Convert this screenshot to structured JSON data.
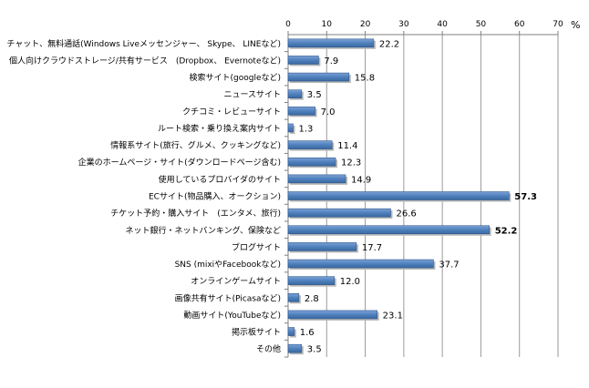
{
  "chart_data": {
    "type": "bar",
    "orientation": "horizontal",
    "unit": "%",
    "x_ticks": [
      "0",
      "10",
      "20",
      "30",
      "40",
      "50",
      "60",
      "70"
    ],
    "xlim": [
      0,
      70
    ],
    "grid": true,
    "bar_color": "#4f81bd",
    "categories": [
      "チャット、無料通話(Windows Liveメッセンジャー、 Skype、 LINEなど)",
      "個人向けクラウドストレージ/共有サービス　(Dropbox、 Evernoteなど)",
      "検索サイト(googleなど)",
      "ニュースサイト",
      "クチコミ・レビューサイト",
      "ルート検索・乗り換え案内サイト",
      "情報系サイト(旅行、グルメ、クッキングなど)",
      "企業のホームページ・サイト(ダウンロードページ含む)",
      "使用しているプロバイダのサイト",
      "ECサイト(物品購入、オークション)",
      "チケット予約・購入サイト　(エンタメ、旅行)",
      "ネット銀行・ネットバンキング、保険など",
      "ブログサイト",
      "SNS (mixiやFacebookなど)",
      "オンラインゲームサイト",
      "画像共有サイト(Picasaなど)",
      "動画サイト(YouTubeなど)",
      "掲示板サイト",
      "その他"
    ],
    "values": [
      22.2,
      7.9,
      15.8,
      3.5,
      7.0,
      1.3,
      11.4,
      12.3,
      14.9,
      57.3,
      26.6,
      52.2,
      17.7,
      37.7,
      12.0,
      2.8,
      23.1,
      1.6,
      3.5
    ],
    "value_labels": [
      "22.2",
      "7.9",
      "15.8",
      "3.5",
      "7.0",
      "1.3",
      "11.4",
      "12.3",
      "14.9",
      "57.3",
      "26.6",
      "52.2",
      "17.7",
      "37.7",
      "12.0",
      "2.8",
      "23.1",
      "1.6",
      "3.5"
    ],
    "bold_values": [
      57.3,
      52.2
    ]
  }
}
